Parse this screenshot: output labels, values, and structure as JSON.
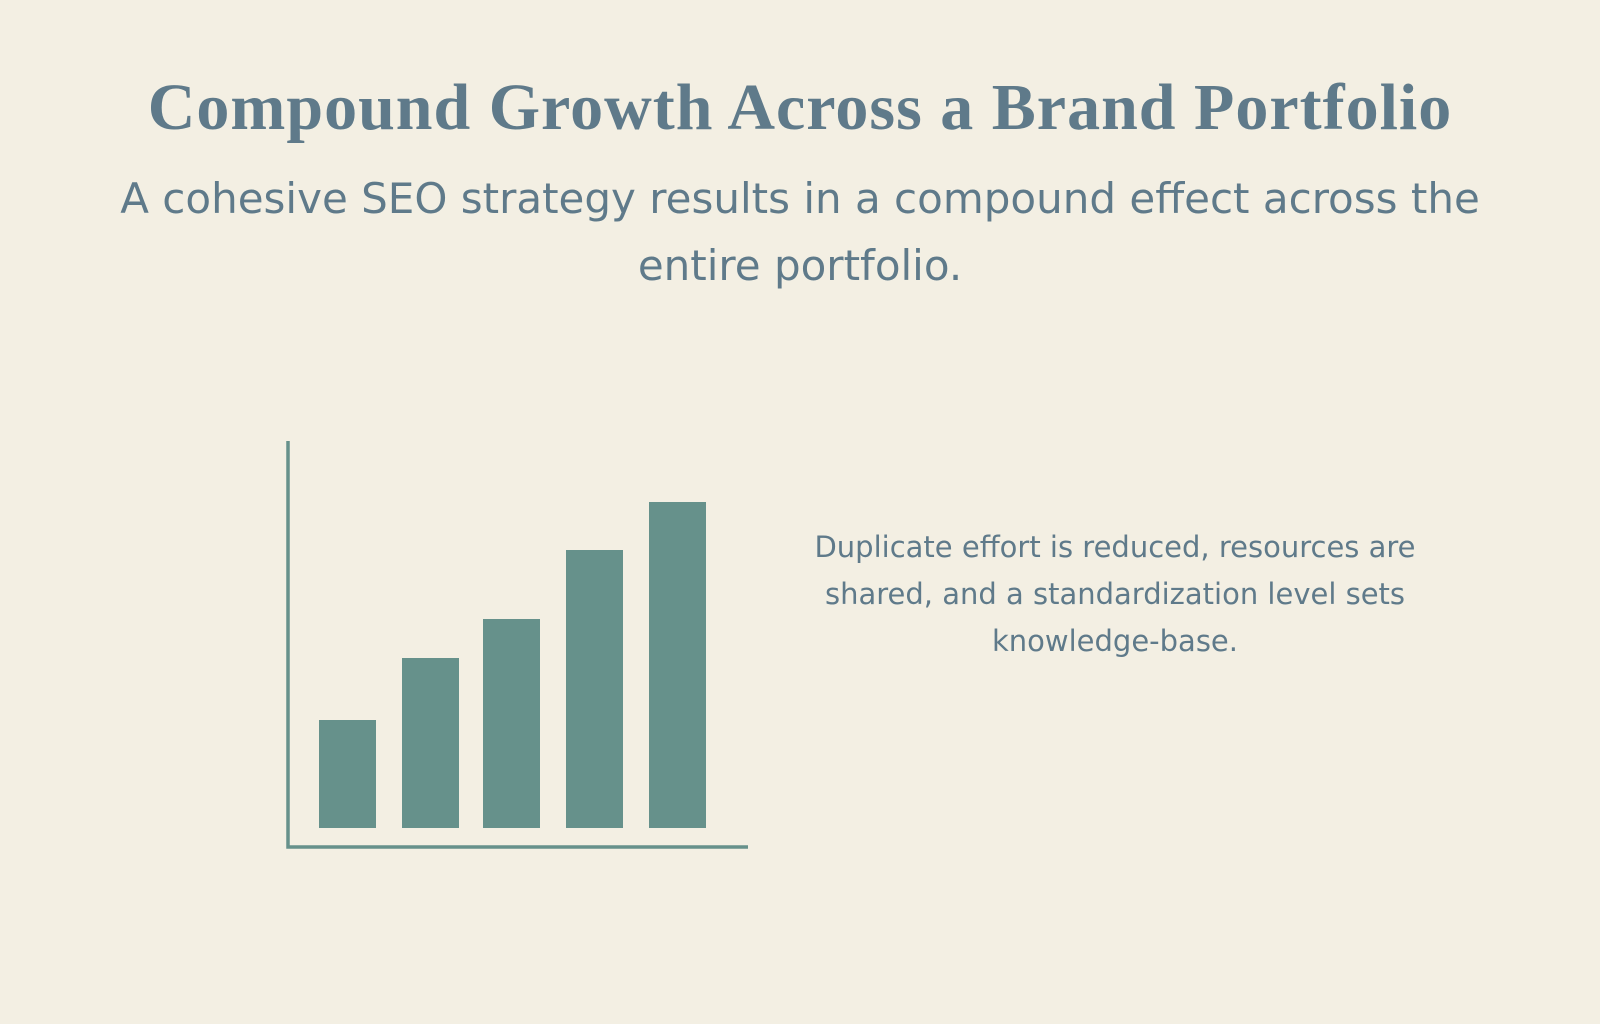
{
  "header": {
    "title": "Compound Growth Across a Brand Portfolio",
    "subtitle": "A cohesive SEO strategy results in a compound effect across the entire portfolio."
  },
  "body": {
    "text": "Duplicate effort is reduced, resources are shared, and a standardization level sets knowledge-base."
  }
}
